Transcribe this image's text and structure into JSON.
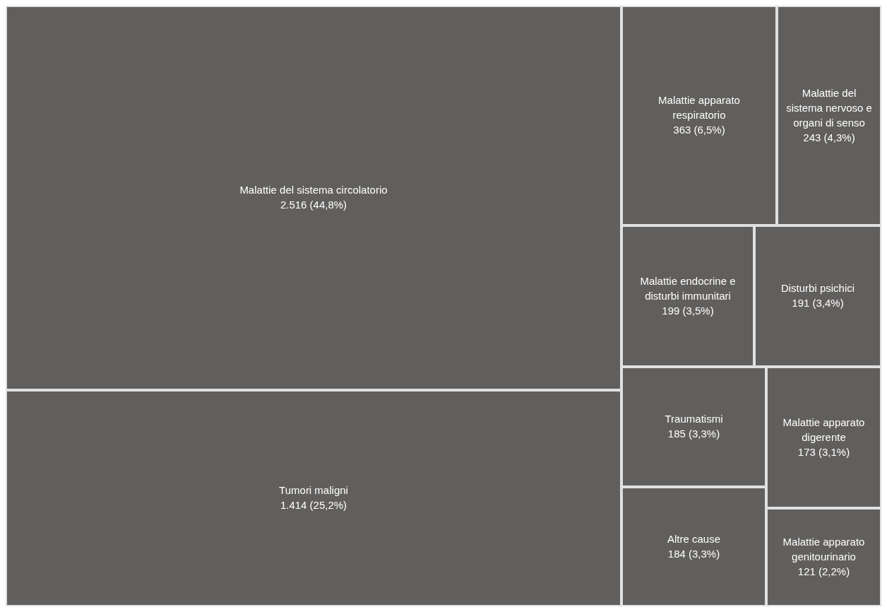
{
  "chart_data": {
    "type": "other",
    "categories": [
      "Malattie del sistema circolatorio",
      "Tumori maligni",
      "Malattie apparato respiratorio",
      "Malattie del sistema nervoso e organi di senso",
      "Malattie endocrine e disturbi immunitari",
      "Disturbi psichici",
      "Traumatismi",
      "Altre cause",
      "Malattie apparato digerente",
      "Malattie apparato genitourinario"
    ],
    "values": [
      2516,
      1414,
      363,
      243,
      199,
      191,
      185,
      184,
      173,
      121
    ],
    "value_labels": [
      "2.516 (44,8%)",
      "1.414 (25,2%)",
      "363 (6,5%)",
      "243 (4,3%)",
      "199 (3,5%)",
      "191 (3,4%)",
      "185 (3,3%)",
      "184 (3,3%)",
      "173 (3,1%)",
      "121 (2,2%)"
    ],
    "color": "#615f5d"
  }
}
